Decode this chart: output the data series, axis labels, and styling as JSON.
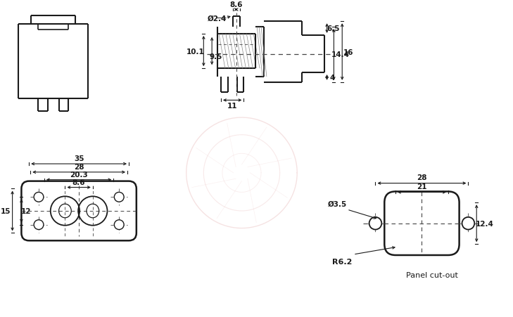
{
  "bg": "#ffffff",
  "lc": "#1a1a1a",
  "fs": 7.5,
  "dims": {
    "pin_dia": "Ø2.4",
    "top_w": "8.6",
    "body_h1": "10.1",
    "body_h2": "9.5",
    "barrel_h1": "6.5",
    "barrel_h2": "4",
    "total_h1": "14.4",
    "total_h2": "16",
    "tab_w": "11",
    "fw1": "35",
    "fw2": "28",
    "fw3": "20.3",
    "fw4": "8.6",
    "fh1": "15",
    "fh2": "12",
    "cut_w1": "28",
    "cut_w2": "21",
    "cut_h": "12.4",
    "hole_d": "Ø3.5",
    "corner_r": "R6.2",
    "panel_label": "Panel cut-out"
  }
}
